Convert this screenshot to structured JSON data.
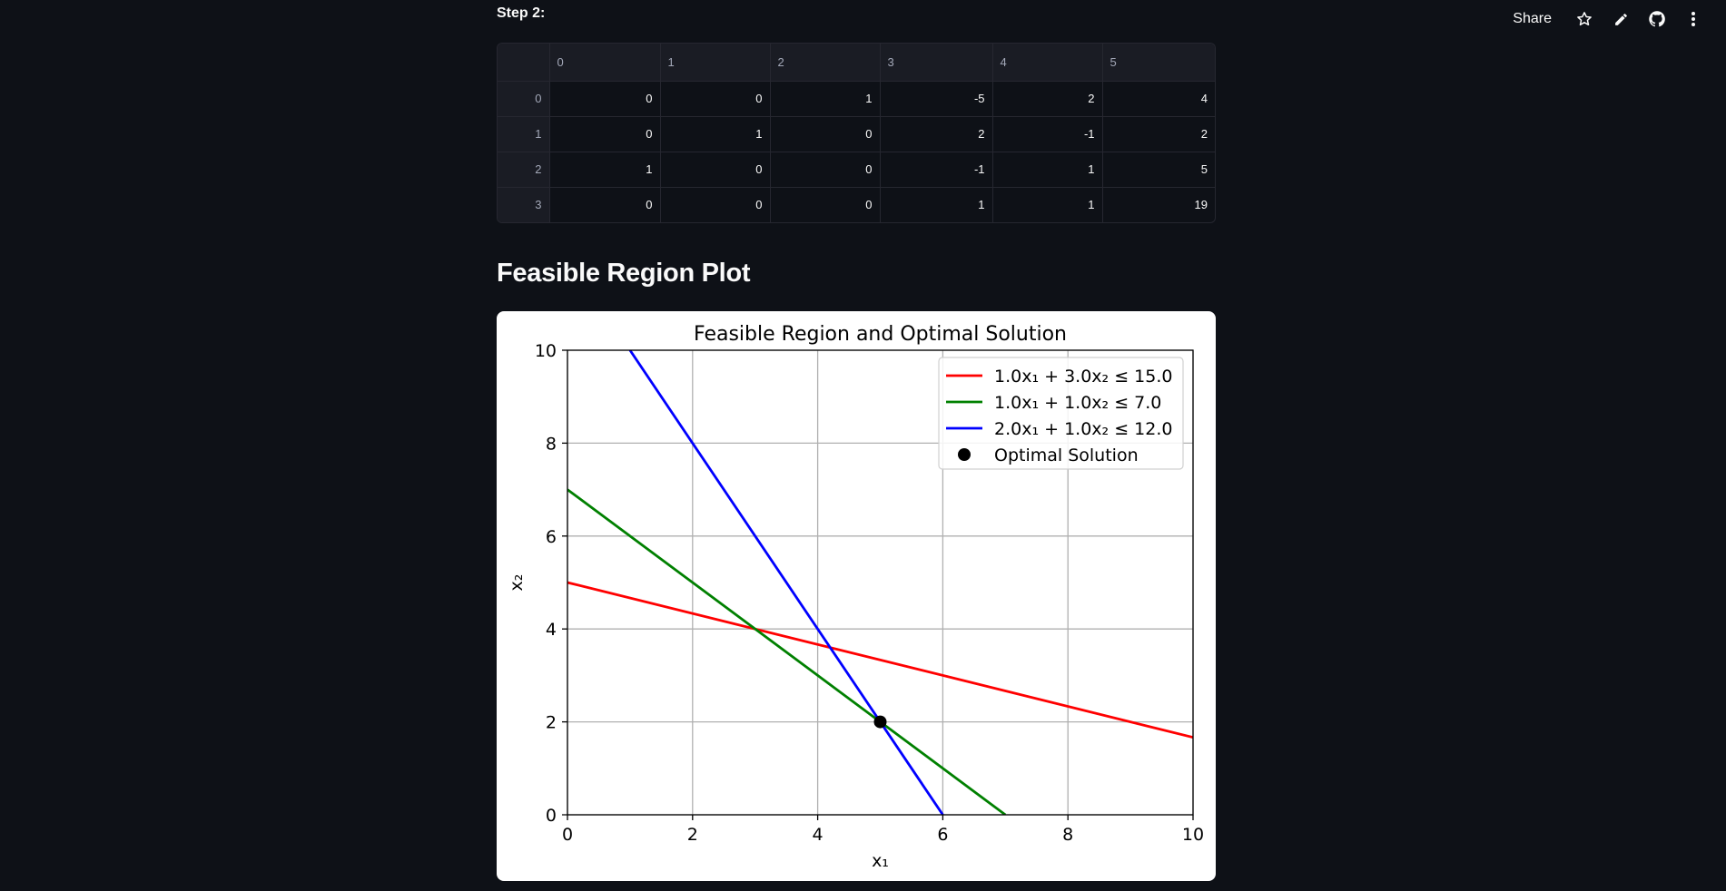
{
  "toolbar": {
    "share_label": "Share",
    "icons": [
      "star-icon",
      "pencil-icon",
      "github-icon",
      "more-vertical-icon"
    ]
  },
  "step": {
    "label": "Step 2:"
  },
  "table": {
    "columns": [
      "",
      "0",
      "1",
      "2",
      "3",
      "4",
      "5"
    ],
    "rows": [
      {
        "index": "0",
        "cells": [
          "0",
          "0",
          "1",
          "-5",
          "2",
          "4"
        ]
      },
      {
        "index": "1",
        "cells": [
          "0",
          "1",
          "0",
          "2",
          "-1",
          "2"
        ]
      },
      {
        "index": "2",
        "cells": [
          "1",
          "0",
          "0",
          "-1",
          "1",
          "5"
        ]
      },
      {
        "index": "3",
        "cells": [
          "0",
          "0",
          "0",
          "1",
          "1",
          "19"
        ]
      }
    ]
  },
  "section": {
    "title": "Feasible Region Plot"
  },
  "chart_data": {
    "type": "line",
    "title": "Feasible Region and Optimal Solution",
    "xlabel": "x₁",
    "ylabel": "x₂",
    "xlim": [
      0,
      10
    ],
    "ylim": [
      0,
      10
    ],
    "xticks": [
      "0",
      "2",
      "4",
      "6",
      "8",
      "10"
    ],
    "yticks": [
      "0",
      "2",
      "4",
      "6",
      "8",
      "10"
    ],
    "grid": true,
    "legend_position": "top-right",
    "series": [
      {
        "name": "1.0x₁ + 3.0x₂ ≤ 15.0",
        "color": "#ff0000",
        "x": [
          0,
          10
        ],
        "y": [
          5,
          1.6667
        ]
      },
      {
        "name": "1.0x₁ + 1.0x₂ ≤ 7.0",
        "color": "#008000",
        "x": [
          0,
          7
        ],
        "y": [
          7,
          0
        ]
      },
      {
        "name": "2.0x₁ + 1.0x₂ ≤ 12.0",
        "color": "#0000ff",
        "x": [
          1,
          6
        ],
        "y": [
          10,
          0
        ]
      }
    ],
    "points": [
      {
        "name": "Optimal Solution",
        "color": "#000000",
        "x": 5,
        "y": 2
      }
    ]
  }
}
